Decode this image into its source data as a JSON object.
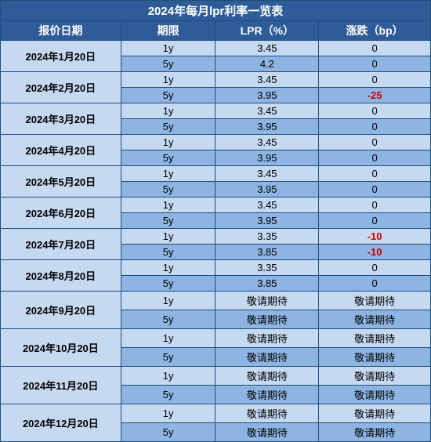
{
  "table": {
    "title": "2024年每月lpr利率一览表",
    "headers": [
      "报价日期",
      "期限",
      "LPR（%）",
      "涨跌（bp）"
    ],
    "colors": {
      "header_bg": "#2e5c99",
      "header_fg": "#ffffff",
      "border": "#1f4e79",
      "row_light": "#c5d9f1",
      "row_dark": "#8db4e2",
      "negative": "#d00000",
      "text": "#000000"
    },
    "typography": {
      "title_fontsize": 15,
      "header_fontsize": 14,
      "body_fontsize": 13,
      "date_bold": true,
      "title_bold": true
    },
    "col_widths_pct": [
      28,
      22,
      24,
      26
    ],
    "months": [
      {
        "date": "2024年1月20日",
        "rows": [
          {
            "term": "1y",
            "lpr": "3.45",
            "chg": "0",
            "neg": false
          },
          {
            "term": "5y",
            "lpr": "4.2",
            "chg": "0",
            "neg": false
          }
        ]
      },
      {
        "date": "2024年2月20日",
        "rows": [
          {
            "term": "1y",
            "lpr": "3.45",
            "chg": "0",
            "neg": false
          },
          {
            "term": "5y",
            "lpr": "3.95",
            "chg": "-25",
            "neg": true
          }
        ]
      },
      {
        "date": "2024年3月20日",
        "rows": [
          {
            "term": "1y",
            "lpr": "3.45",
            "chg": "0",
            "neg": false
          },
          {
            "term": "5y",
            "lpr": "3.95",
            "chg": "0",
            "neg": false
          }
        ]
      },
      {
        "date": "2024年4月20日",
        "rows": [
          {
            "term": "1y",
            "lpr": "3.45",
            "chg": "0",
            "neg": false
          },
          {
            "term": "5y",
            "lpr": "3.95",
            "chg": "0",
            "neg": false
          }
        ]
      },
      {
        "date": "2024年5月20日",
        "rows": [
          {
            "term": "1y",
            "lpr": "3.45",
            "chg": "0",
            "neg": false
          },
          {
            "term": "5y",
            "lpr": "3.95",
            "chg": "0",
            "neg": false
          }
        ]
      },
      {
        "date": "2024年6月20日",
        "rows": [
          {
            "term": "1y",
            "lpr": "3.45",
            "chg": "0",
            "neg": false
          },
          {
            "term": "5y",
            "lpr": "3.95",
            "chg": "0",
            "neg": false
          }
        ]
      },
      {
        "date": "2024年7月20日",
        "rows": [
          {
            "term": "1y",
            "lpr": "3.35",
            "chg": "-10",
            "neg": true
          },
          {
            "term": "5y",
            "lpr": "3.85",
            "chg": "-10",
            "neg": true
          }
        ]
      },
      {
        "date": "2024年8月20日",
        "rows": [
          {
            "term": "1y",
            "lpr": "3.35",
            "chg": "0",
            "neg": false
          },
          {
            "term": "5y",
            "lpr": "3.85",
            "chg": "0",
            "neg": false
          }
        ]
      },
      {
        "date": "2024年9月20日",
        "rows": [
          {
            "term": "1y",
            "lpr": "敬请期待",
            "chg": "敬请期待",
            "neg": false
          },
          {
            "term": "5y",
            "lpr": "敬请期待",
            "chg": "敬请期待",
            "neg": false
          }
        ]
      },
      {
        "date": "2024年10月20日",
        "rows": [
          {
            "term": "1y",
            "lpr": "敬请期待",
            "chg": "敬请期待",
            "neg": false
          },
          {
            "term": "5y",
            "lpr": "敬请期待",
            "chg": "敬请期待",
            "neg": false
          }
        ]
      },
      {
        "date": "2024年11月20日",
        "rows": [
          {
            "term": "1y",
            "lpr": "敬请期待",
            "chg": "敬请期待",
            "neg": false
          },
          {
            "term": "5y",
            "lpr": "敬请期待",
            "chg": "敬请期待",
            "neg": false
          }
        ]
      },
      {
        "date": "2024年12月20日",
        "rows": [
          {
            "term": "1y",
            "lpr": "敬请期待",
            "chg": "敬请期待",
            "neg": false
          },
          {
            "term": "5y",
            "lpr": "敬请期待",
            "chg": "敬请期待",
            "neg": false
          }
        ]
      }
    ]
  }
}
